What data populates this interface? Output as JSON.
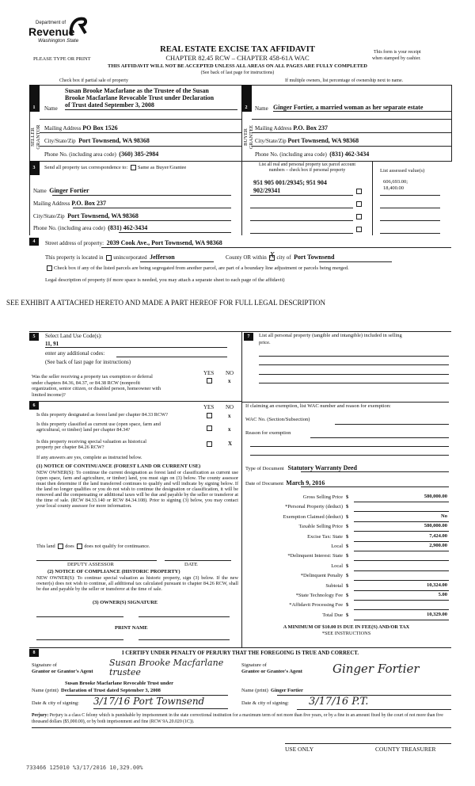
{
  "logo": {
    "line1": "Department of",
    "line2": "Revenue",
    "line3": "Washington State"
  },
  "header": {
    "title": "REAL ESTATE EXCISE TAX AFFIDAVIT",
    "chapter": "CHAPTER 82.45 RCW – CHAPTER 458-61A WAC",
    "please": "PLEASE TYPE OR PRINT",
    "receipt1": "This form is your receipt",
    "receipt2": "when stamped by cashier.",
    "warning": "THIS AFFIDAVIT WILL NOT BE ACCEPTED UNLESS ALL AREAS ON ALL PAGES ARE FULLY COMPLETED",
    "see_back": "(See back of last page for instructions)",
    "partial": "Check box if partial sale of property",
    "multiple": "If multiple owners, list percentage of ownership next to name."
  },
  "seller": {
    "num": "1",
    "side": "SELLER GRANTOR",
    "name_label": "Name",
    "name1": "Susan Brooke Macfarlane as the Trustee of the Susan",
    "name2": "Brooke Macfarlane Revocable Trust under Declaration",
    "name3": "of Trust dated September 3, 2008",
    "mail_label": "Mailing Address",
    "mail": "PO Box 1526",
    "city_label": "City/State/Zip",
    "city": "Port Townsend, WA 98368",
    "phone_label": "Phone No. (including area code)",
    "phone": "(360) 385-2984"
  },
  "buyer": {
    "num": "2",
    "side": "BUYER GRANTEE",
    "name_label": "Name",
    "name": "Ginger Fortier, a married woman as her separate estate",
    "mail_label": "Mailing Address",
    "mail": "P.O. Box 237",
    "city_label": "City/State/Zip",
    "city": "Port Townsend, WA 98368",
    "phone_label": "Phone No. (including area code)",
    "phone": "(831) 462-3434"
  },
  "sec3": {
    "num": "3",
    "send": "Send all property tax correspondence to:",
    "same": "Same as Buyer/Grantee",
    "name_label": "Name",
    "name": "Ginger  Fortier",
    "mail_label": "Mailing Address",
    "mail": "P.O. Box 237",
    "city_label": "City/State/Zip",
    "city": "Port Townsend, WA 98368",
    "phone_label": "Phone No. (including area code)",
    "phone": "(831) 462-3434",
    "parcel_h1": "List all real and personal property tax parcel account",
    "parcel_h2": "numbers – check box if personal property",
    "assessed_h": "List assessed value(s)",
    "parcel1": "951 905 001/29345; 951 904",
    "parcel2": "902/29341",
    "assessed1": "606,693.00;",
    "assessed2": "18,400.00"
  },
  "sec4": {
    "num": "4",
    "street_label": "Street address of property:",
    "street": "2039 Cook Ave., Port Townsend, WA  98368",
    "located": "This property is located in",
    "unincorp": "unincorporated",
    "county": "Jefferson",
    "county_or": "County OR  within",
    "city_of": "city of",
    "city": "Port Townsend",
    "segregated": "Check box if any of the listed parcels are being segregated from another parcel, are part of a boundary line adjustment or parcels being merged.",
    "legal": "Legal description of property (if more space is needed, you may attach a separate sheet to each page of the affidavit)",
    "exhibit": "SEE EXHIBIT A ATTACHED HERETO AND MADE A PART HEREOF FOR FULL LEGAL DESCRIPTION"
  },
  "sec5": {
    "num": "5",
    "select": "Select Land Use Code(s):",
    "codes": "11, 91",
    "additional": "enter any additional codes:",
    "see_back": "(See back of last page for instructions)",
    "yes": "YES",
    "no": "NO",
    "q1a": "Was the seller receiving a property tax exemption or deferral",
    "q1b": "under chapters 84.36, 84.37, or 84.38 RCW (nonprofit",
    "q1c": "organization, senior citizen, or disabled person, homeowner with",
    "q1d": "limited income)?",
    "q1_answer": "x"
  },
  "sec6": {
    "num": "6",
    "yes": "YES",
    "no": "NO",
    "q1": "Is this property designated as forest land per chapter 84.33 RCW?",
    "q1_answer": "x",
    "q2a": "Is this property classified as current use (open space, farm and",
    "q2b": "agricultural, or timber) land per chapter 84.34?",
    "q2_answer": "x",
    "q3a": "Is this property receiving special valuation as historical",
    "q3b": "property per chapter 84.26 RCW?",
    "q3_answer": "X",
    "if_yes": "If any answers are yes, complete as instructed below.",
    "n1_title": "(1) NOTICE OF CONTINUANCE (FOREST LAND OR CURRENT USE)",
    "n1_text": "NEW OWNER(S): To continue the current designation as forest land or classification as current use (open space, farm and agriculture, or timber) land, you must sign on (3) below. The county assessor must then determine if the land transferred continues to qualify and will indicate by signing below. If the land no longer qualifies or you do not wish to continue the designation or classification, it will be removed and the compensating or additional taxes will be due and payable by the seller or transferor at the time of sale. (RCW 84.33.140 or RCW 84.34.108). Prior to signing (3) below, you may contact your local county assessor for more information.",
    "this_land": "This land",
    "does": "does",
    "does_not": "does not qualify for continuance.",
    "deputy": "DEPUTY ASSESSOR",
    "date": "DATE",
    "n2_title": "(2) NOTICE OF COMPLIANCE (HISTORIC PROPERTY)",
    "n2_text": "NEW OWNER(S): To continue special valuation as historic property, sign (3) below. If the new owner(s) does not wish to continue, all additional tax calculated pursuant to chapter 84.26 RCW, shall be due and payable by the seller or transferor at the time of sale.",
    "n3_title": "(3) OWNER(S) SIGNATURE",
    "print_name": "PRINT NAME"
  },
  "sec7": {
    "num": "7",
    "list": "List all personal property (tangible and intangible) included in selling",
    "list2": "price.",
    "exemption": "If claiming an exemption, list WAC number and reason for exemption:",
    "wac": "WAC No. (Section/Subsection)",
    "reason": "Reason for exemption",
    "doc_type_label": "Type of Document",
    "doc_type": "Statutory Warranty Deed",
    "doc_date_label": "Date of Document",
    "doc_date": "March 9, 2016",
    "fees": [
      {
        "label": "Gross Selling Price",
        "value": "580,000.00"
      },
      {
        "label": "*Personal Property (deduct)",
        "value": ""
      },
      {
        "label": "Exemption Claimed (deduct)",
        "value": "No"
      },
      {
        "label": "Taxable Selling Price",
        "value": "580,000.00"
      },
      {
        "label": "Excise Tax:  State",
        "value": "7,424.00"
      },
      {
        "label": "Local",
        "value": "2,900.00"
      },
      {
        "label": "*Delinquent Interest:  State",
        "value": ""
      },
      {
        "label": "Local",
        "value": ""
      },
      {
        "label": "*Delinquent Penalty",
        "value": ""
      },
      {
        "label": "Subtotal",
        "value": "10,324.00"
      },
      {
        "label": "*State Technology Fee",
        "value": "5.00"
      },
      {
        "label": "*Affidavit Processing Fee",
        "value": ""
      },
      {
        "label": "Total Due",
        "value": "10,329.00"
      }
    ],
    "currency": "$",
    "minimum": "A MINIMUM OF $10.00 IS DUE IN FEE(S) AND/OR TAX",
    "see_instr": "*SEE INSTRUCTIONS"
  },
  "sec8": {
    "num": "8",
    "certify": "I CERTIFY UNDER PENALTY OF PERJURY THAT THE FOREGOING IS TRUE AND CORRECT.",
    "sig_of": "Signature of",
    "grantor_agent": "Grantor or Grantor's Agent",
    "grantee_agent": "Grantee or Grantee's Agent",
    "grantor_sig": "Susan Brooke Macfarlane trustee",
    "grantee_sig": "Ginger Fortier",
    "name_print": "Name (print)",
    "grantor_name1": "Susan Brooke Macfarlane Revocable Trust under",
    "grantor_name2": "Declaration of Trust dated September 3, 2008",
    "grantee_name": "Ginger  Fortier",
    "date_city": "Date & city of signing:",
    "grantor_date": "3/17/16 Port Townsend",
    "grantee_date": "3/17/16  P.T.",
    "perjury_label": "Perjury:",
    "perjury": "Perjury is a class C felony which is punishable by imprisonment in the state correctional institution for a maximum term of not more than five years, or by a fine in an amount fixed by the court of not more than five thousand dollars ($5,000.00), or by both imprisonment and fine (RCW 9A.20.020 (1C))."
  },
  "footer": {
    "use_only": "USE ONLY",
    "treasurer": "COUNTY TREASURER",
    "stamp": "733466 125010 %3/17/2016 10,329.00%"
  }
}
